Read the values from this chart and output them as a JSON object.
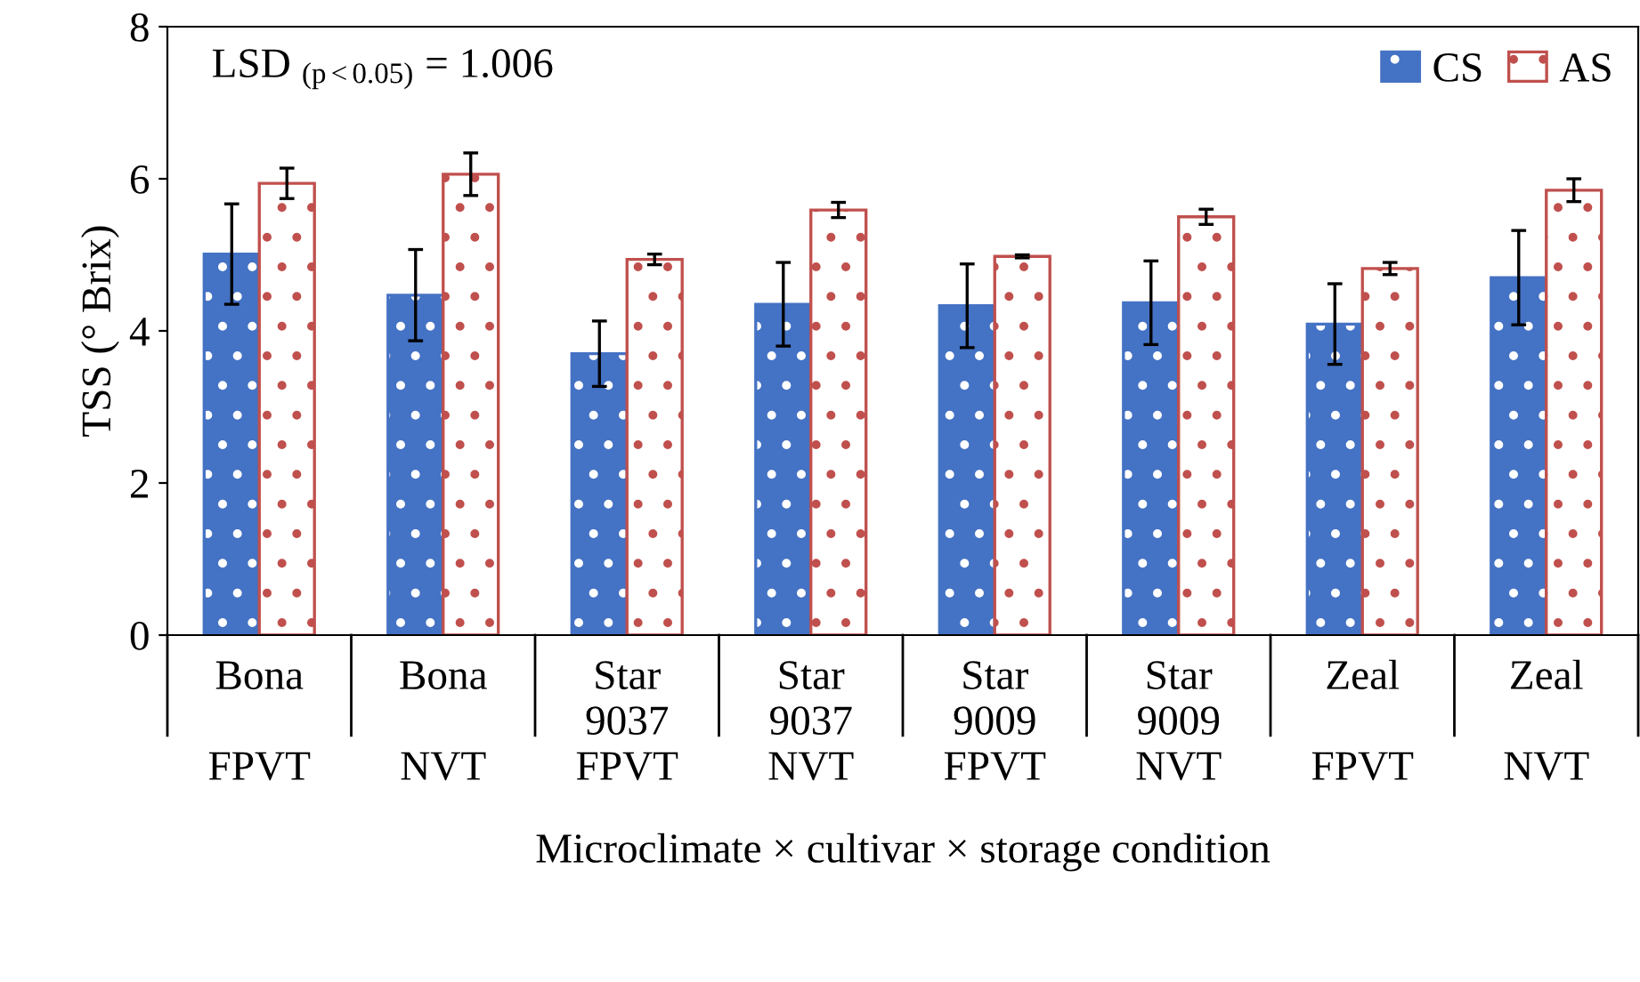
{
  "chart_data": {
    "type": "bar",
    "ylabel": "TSS (° Brix)",
    "xlabel": "Microclimate × cultivar × storage condition",
    "categories": [
      "Bona\n\nFPVT",
      "Bona\n\nNVT",
      "Star\n9037\nFPVT",
      "Star\n9037\nNVT",
      "Star\n9009\nFPVT",
      "Star\n9009\nNVT",
      "Zeal\n\nFPVT",
      "Zeal\n\nNVT"
    ],
    "series": [
      {
        "name": "CS",
        "color": "#4472c4",
        "values": [
          5.01,
          4.47,
          3.7,
          4.35,
          4.33,
          4.37,
          4.09,
          4.7
        ],
        "errors": [
          0.66,
          0.6,
          0.43,
          0.55,
          0.55,
          0.55,
          0.53,
          0.62
        ]
      },
      {
        "name": "AS",
        "color": "#c0504d",
        "values": [
          5.94,
          6.06,
          4.94,
          5.59,
          4.98,
          5.5,
          4.82,
          5.85
        ],
        "errors": [
          0.2,
          0.28,
          0.07,
          0.1,
          0.02,
          0.1,
          0.08,
          0.15
        ]
      }
    ],
    "ylim": [
      0,
      8
    ],
    "yticks": [
      0,
      2,
      4,
      6,
      8
    ],
    "grid": false,
    "legend": "top right",
    "annotations": [
      "LSD $_{(p<0.05)}$ = 1.006"
    ]
  }
}
